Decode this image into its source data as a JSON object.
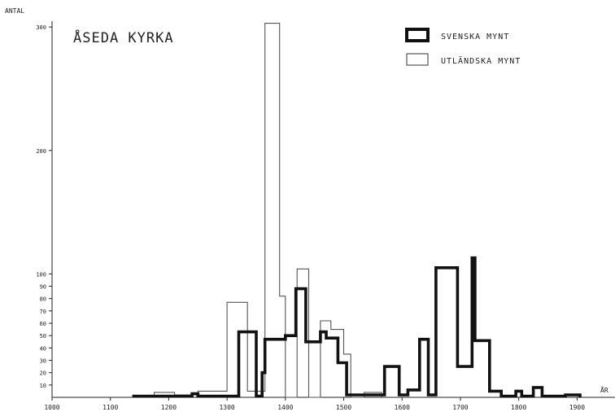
{
  "chart_data": {
    "type": "step",
    "title": "ÅSEDA KYRKA",
    "ylabel": "ANTAL",
    "xlabel": "ÅR",
    "x_ticks": [
      {
        "value": 1000,
        "label": "1000"
      },
      {
        "value": 1100,
        "label": "1100"
      },
      {
        "value": 1200,
        "label": "1200"
      },
      {
        "value": 1300,
        "label": "1300"
      },
      {
        "value": 1400,
        "label": "1400"
      },
      {
        "value": 1500,
        "label": "1500"
      },
      {
        "value": 1600,
        "label": "1600"
      },
      {
        "value": 1700,
        "label": "1700"
      },
      {
        "value": 1800,
        "label": "1800"
      },
      {
        "value": 1900,
        "label": "1900"
      }
    ],
    "y_ticks": [
      {
        "value": 10,
        "label": "10"
      },
      {
        "value": 20,
        "label": "20"
      },
      {
        "value": 30,
        "label": "30"
      },
      {
        "value": 40,
        "label": "40"
      },
      {
        "value": 50,
        "label": "50"
      },
      {
        "value": 60,
        "label": "60"
      },
      {
        "value": 70,
        "label": "70"
      },
      {
        "value": 80,
        "label": "80"
      },
      {
        "value": 90,
        "label": "90"
      },
      {
        "value": 100,
        "label": "100"
      },
      {
        "value": 200,
        "label": "200"
      },
      {
        "value": 300,
        "label": "300"
      }
    ],
    "xlim": [
      1000,
      1965
    ],
    "ylim": [
      0,
      310
    ],
    "legend_position": "top-right",
    "series": [
      {
        "name": "SVENSKA MYNT",
        "style": "thick",
        "color": "#111111",
        "points": [
          [
            1140,
            0
          ],
          [
            1140,
            1
          ],
          [
            1240,
            1
          ],
          [
            1240,
            3
          ],
          [
            1250,
            3
          ],
          [
            1250,
            1
          ],
          [
            1320,
            1
          ],
          [
            1320,
            53
          ],
          [
            1350,
            53
          ],
          [
            1350,
            1
          ],
          [
            1360,
            1
          ],
          [
            1360,
            20
          ],
          [
            1365,
            20
          ],
          [
            1365,
            47
          ],
          [
            1400,
            47
          ],
          [
            1400,
            50
          ],
          [
            1418,
            50
          ],
          [
            1418,
            88
          ],
          [
            1435,
            88
          ],
          [
            1435,
            45
          ],
          [
            1460,
            45
          ],
          [
            1460,
            53
          ],
          [
            1470,
            53
          ],
          [
            1470,
            48
          ],
          [
            1490,
            48
          ],
          [
            1490,
            28
          ],
          [
            1505,
            28
          ],
          [
            1505,
            2
          ],
          [
            1570,
            2
          ],
          [
            1570,
            25
          ],
          [
            1595,
            25
          ],
          [
            1595,
            2
          ],
          [
            1610,
            2
          ],
          [
            1610,
            6
          ],
          [
            1630,
            6
          ],
          [
            1630,
            47
          ],
          [
            1645,
            47
          ],
          [
            1645,
            2
          ],
          [
            1658,
            2
          ],
          [
            1658,
            105
          ],
          [
            1695,
            105
          ],
          [
            1695,
            25
          ],
          [
            1720,
            25
          ],
          [
            1720,
            113
          ],
          [
            1725,
            113
          ],
          [
            1725,
            46
          ],
          [
            1750,
            46
          ],
          [
            1750,
            5
          ],
          [
            1770,
            5
          ],
          [
            1770,
            1
          ],
          [
            1795,
            1
          ],
          [
            1795,
            5
          ],
          [
            1805,
            5
          ],
          [
            1805,
            1
          ],
          [
            1825,
            1
          ],
          [
            1825,
            8
          ],
          [
            1840,
            8
          ],
          [
            1840,
            1
          ],
          [
            1880,
            1
          ],
          [
            1880,
            2
          ],
          [
            1905,
            2
          ],
          [
            1905,
            0
          ]
        ]
      },
      {
        "name": "UTLÄNDSKA MYNT",
        "style": "thin",
        "color": "#555555",
        "points": [
          [
            1175,
            0
          ],
          [
            1175,
            4
          ],
          [
            1210,
            4
          ],
          [
            1210,
            2
          ],
          [
            1250,
            2
          ],
          [
            1250,
            5
          ],
          [
            1300,
            5
          ],
          [
            1300,
            77
          ],
          [
            1335,
            77
          ],
          [
            1335,
            5
          ],
          [
            1365,
            5
          ],
          [
            1365,
            303
          ],
          [
            1390,
            303
          ],
          [
            1390,
            82
          ],
          [
            1400,
            82
          ],
          [
            1400,
            0
          ],
          [
            1420,
            0
          ],
          [
            1420,
            104
          ],
          [
            1440,
            104
          ],
          [
            1440,
            0
          ],
          [
            1460,
            0
          ],
          [
            1460,
            62
          ],
          [
            1478,
            62
          ],
          [
            1478,
            55
          ],
          [
            1500,
            55
          ],
          [
            1500,
            35
          ],
          [
            1512,
            35
          ],
          [
            1512,
            0
          ],
          [
            1535,
            0
          ],
          [
            1535,
            4
          ],
          [
            1565,
            4
          ],
          [
            1565,
            0
          ]
        ]
      }
    ]
  }
}
